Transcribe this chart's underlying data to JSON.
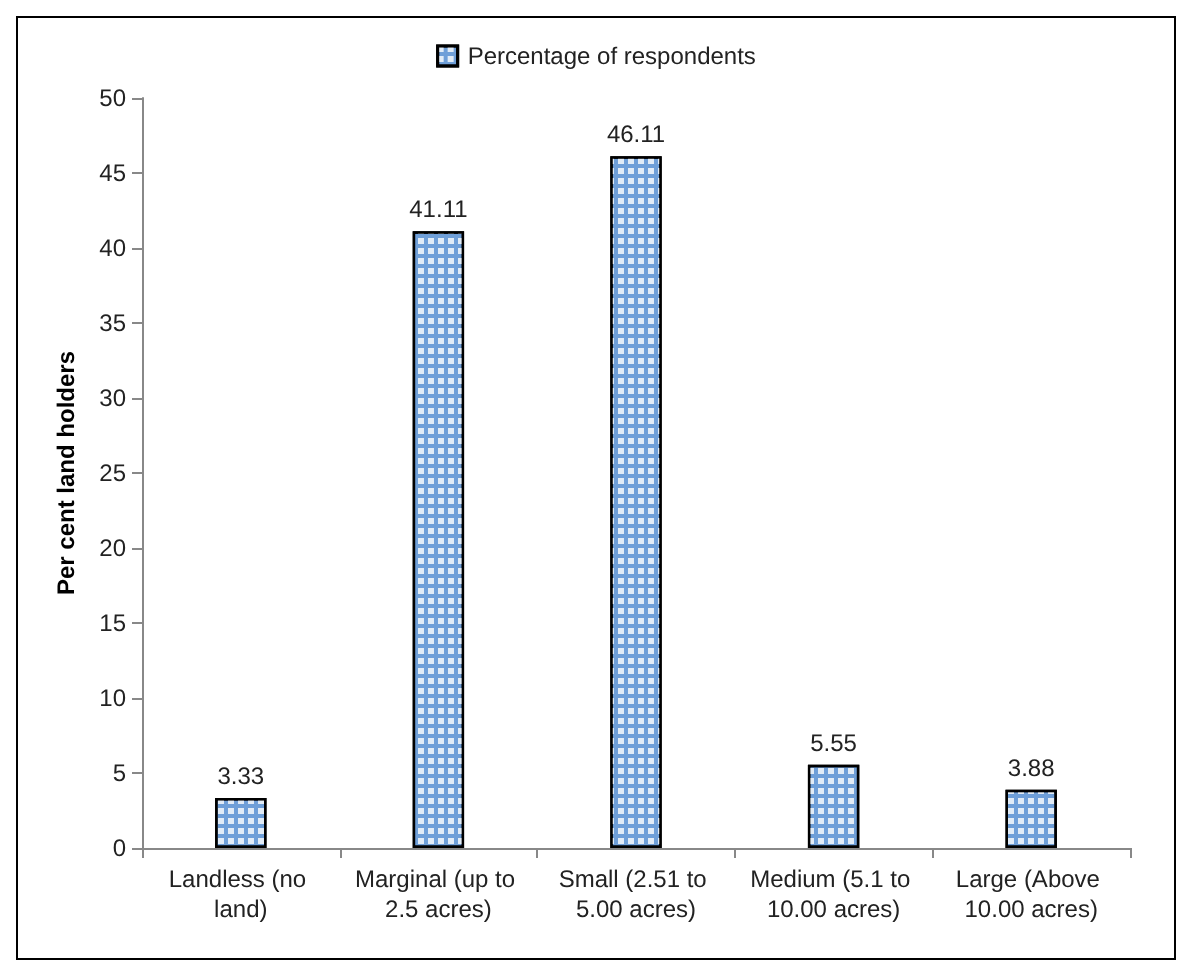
{
  "chart_data": {
    "type": "bar",
    "ylabel": "Per cent land holders",
    "categories": [
      "Landless (no land)",
      "Marginal (up to 2.5 acres)",
      "Small (2.51 to 5.00 acres)",
      "Medium (5.1 to 10.00 acres)",
      "Large (Above 10.00 acres)"
    ],
    "series": [
      {
        "name": "Percentage of respondents",
        "color": "#6f9fd8",
        "values": [
          3.33,
          41.11,
          46.11,
          5.55,
          3.88
        ]
      }
    ],
    "ylim": [
      0,
      50
    ],
    "yticks": [
      0,
      5,
      10,
      15,
      20,
      25,
      30,
      35,
      40,
      45,
      50
    ],
    "grid": false,
    "legend": "top",
    "data_labels": true
  }
}
